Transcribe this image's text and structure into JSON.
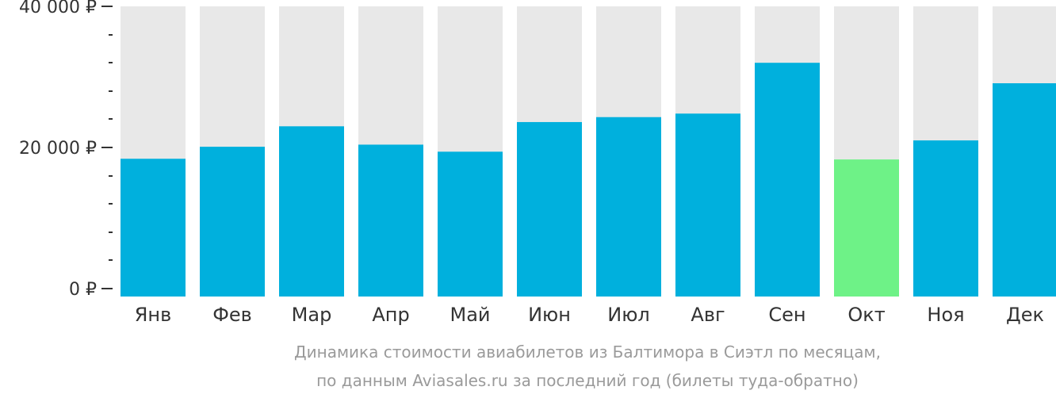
{
  "chart_data": {
    "type": "bar",
    "categories": [
      "Янв",
      "Фев",
      "Мар",
      "Апр",
      "Май",
      "Июн",
      "Июл",
      "Авг",
      "Сен",
      "Окт",
      "Ноя",
      "Дек"
    ],
    "values": [
      18400,
      20100,
      23000,
      20400,
      19400,
      23600,
      24300,
      24800,
      32000,
      18300,
      21000,
      29100
    ],
    "ylim": [
      0,
      40000
    ],
    "yticks": [
      {
        "value": 0,
        "label": "0 ₽"
      },
      {
        "value": 20000,
        "label": "20 000 ₽"
      },
      {
        "value": 40000,
        "label": "40 000 ₽"
      }
    ],
    "minor_tick_step": 4000,
    "highlight_index": 9,
    "grid": false,
    "caption_line1": "Динамика стоимости авиабилетов из Балтимора в Сиэтл по месяцам,",
    "caption_line2": "по данным Aviasales.ru за последний год (билеты туда-обратно)"
  },
  "colors": {
    "bar": "#00b0dd",
    "bar_highlight": "#6ef287",
    "bar_background": "#e8e8e8",
    "axis": "#333333",
    "caption": "#9a9a9a"
  }
}
